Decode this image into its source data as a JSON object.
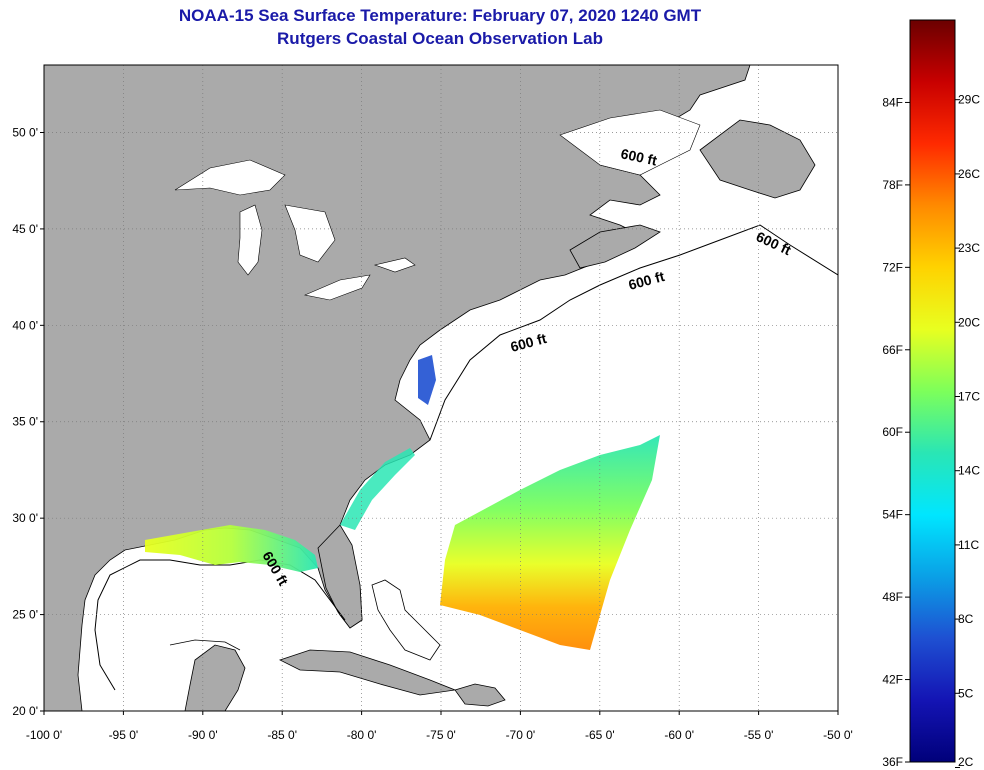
{
  "header": {
    "title": "NOAA-15 Sea Surface Temperature:  February 07, 2020 1240 GMT",
    "subtitle": "Rutgers Coastal Ocean Observation Lab"
  },
  "axes": {
    "latitude_labels": [
      "50 0'",
      "45 0'",
      "40 0'",
      "35 0'",
      "30 0'",
      "25 0'",
      "20 0'"
    ],
    "longitude_labels": [
      "-100 0'",
      "-95 0'",
      "-90 0'",
      "-85 0'",
      "-80 0'",
      "-75 0'",
      "-70 0'",
      "-65 0'",
      "-60 0'",
      "-55 0'",
      "-50 0'"
    ]
  },
  "contours": [
    {
      "label": "600 ft"
    },
    {
      "label": "600 ft"
    },
    {
      "label": "600 ft"
    },
    {
      "label": "600 ft"
    },
    {
      "label": "600 ft"
    }
  ],
  "colorbar": {
    "fahrenheit_labels": [
      "84F",
      "78F",
      "72F",
      "66F",
      "60F",
      "54F",
      "48F",
      "42F",
      "36F"
    ],
    "celsius_labels": [
      "29C",
      "26C",
      "23C",
      "20C",
      "17C",
      "14C",
      "11C",
      "8C",
      "5C",
      "2C"
    ],
    "colors": [
      "#6b0000",
      "#c80000",
      "#ff2a00",
      "#ff8a00",
      "#ffd200",
      "#e8ff20",
      "#7dff5a",
      "#2ae6b4",
      "#00e6ff",
      "#0aa0e6",
      "#1e50d2",
      "#1414b4",
      "#00007a"
    ]
  },
  "style": {
    "land_color": "#aaaaaa",
    "ocean_color": "#ffffff"
  }
}
